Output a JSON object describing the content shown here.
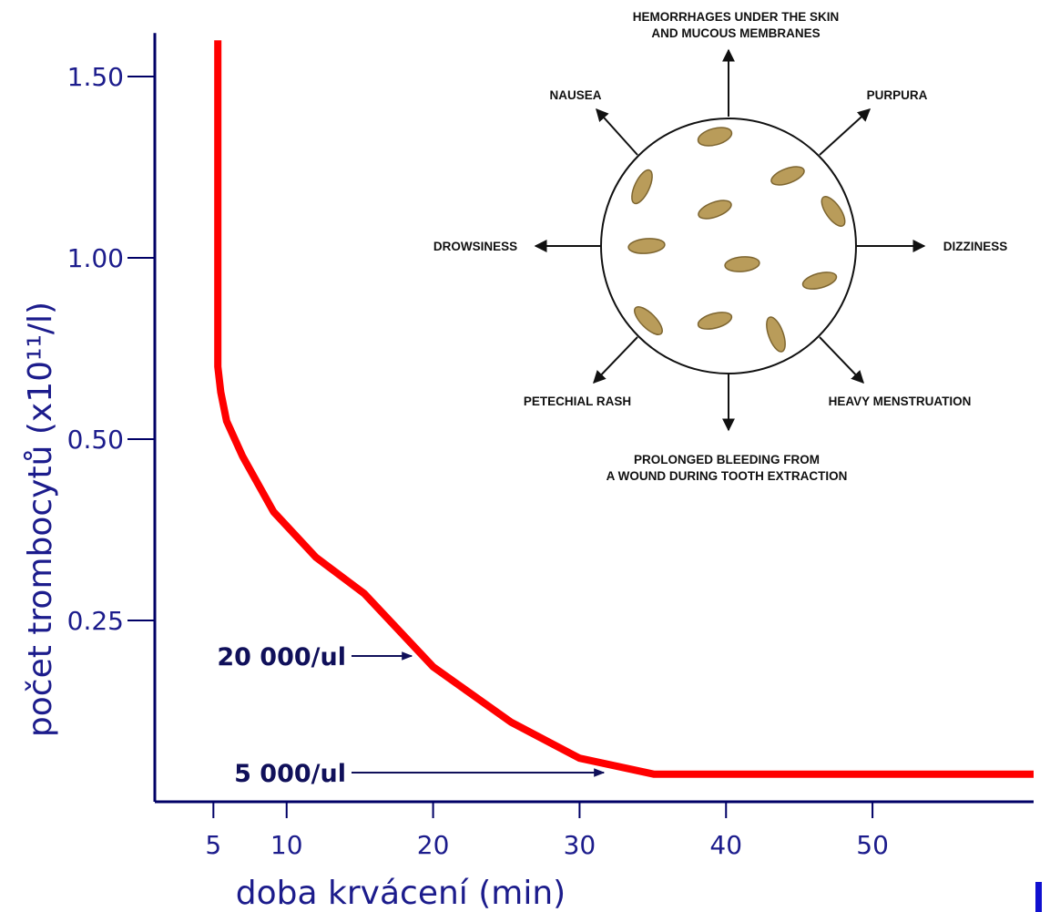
{
  "chart_data": {
    "type": "line",
    "xlabel": "doba krvácení (min)",
    "ylabel": "počet trombocytů (x10¹¹/l)",
    "xlim": [
      1,
      61
    ],
    "xticks": [
      5,
      10,
      20,
      30,
      40,
      50
    ],
    "ylim": [
      0,
      1.62
    ],
    "yticks": [
      0.25,
      {
        "value": 0.5,
        "label": "0.50"
      },
      {
        "value": 1.0,
        "label": "1.00"
      },
      {
        "value": 1.5,
        "label": "1.50"
      }
    ],
    "y_scale": "piecewise",
    "x": [
      5.3,
      5.3,
      5.5,
      5.9,
      7,
      9.1,
      12,
      15.3,
      20,
      25.3,
      30,
      35.1,
      61
    ],
    "values": [
      1.6,
      0.7,
      0.63,
      0.55,
      0.476,
      0.4,
      0.337,
      0.287,
      0.186,
      0.11,
      0.06,
      0.038,
      0.038
    ],
    "color": "#ff0000",
    "annotations": [
      "20 000/ul",
      "5 000/ul"
    ],
    "inset_labels": [
      [
        "HEMORRHAGES UNDER THE SKIN",
        "AND MUCOUS MEMBRANES"
      ],
      [
        "NAUSEA"
      ],
      [
        "PURPURA"
      ],
      [
        "DROWSINESS"
      ],
      [
        "DIZZINESS"
      ],
      [
        "PETECHIAL RASH"
      ],
      [
        "HEAVY MENSTRUATION"
      ],
      [
        "PROLONGED BLEEDING FROM",
        "A WOUND DURING TOOTH EXTRACTION"
      ]
    ]
  }
}
